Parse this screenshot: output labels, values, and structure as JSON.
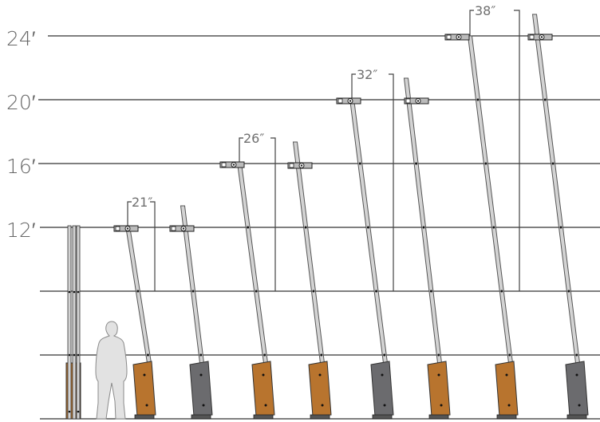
{
  "height_labels": [
    "24′",
    "20′",
    "16′",
    "12′"
  ],
  "span_labels": [
    "21″",
    "26″",
    "32″",
    "38″"
  ],
  "colors": {
    "background": "#ffffff",
    "gridline": "#333333",
    "post_fill": "#d3d3d3",
    "post_stroke": "#555555",
    "base_wood": "#b8742e",
    "base_metal": "#6b6b6e",
    "human_silhouette": "#e2e2e2",
    "label_text": "#666666"
  },
  "icons": {
    "human": "human-scale-figure-icon",
    "bracket": "crossarm-bracket-icon"
  },
  "base_sequence": [
    "wood",
    "metal",
    "wood",
    "wood",
    "metal",
    "wood",
    "wood",
    "metal"
  ]
}
